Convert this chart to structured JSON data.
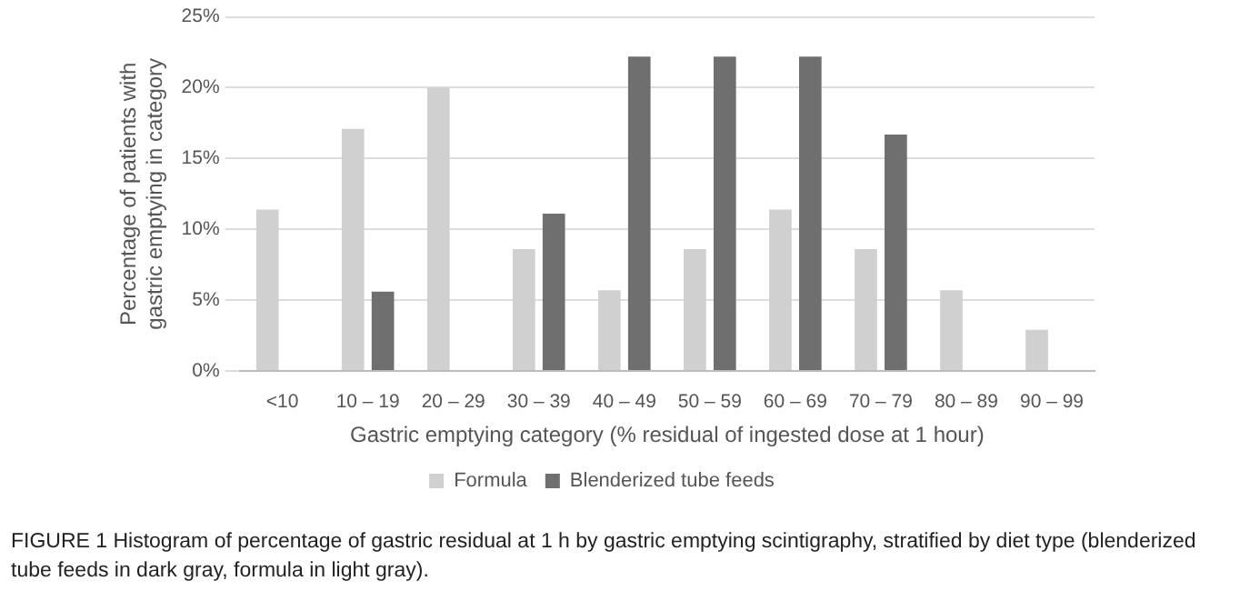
{
  "chart_data": {
    "type": "bar",
    "xlabel": "Gastric emptying category (% residual of ingested dose at 1 hour)",
    "ylabel": "Percentage of patients with gastric emptying in category",
    "categories": [
      "<10",
      "10 – 19",
      "20 – 29",
      "30 – 39",
      "40 – 49",
      "50 – 59",
      "60 – 69",
      "70 – 79",
      "80 – 89",
      "90 – 99"
    ],
    "series": [
      {
        "name": "Formula",
        "color": "#d0d0d0",
        "values": [
          11.4,
          17.1,
          20,
          8.6,
          5.7,
          8.6,
          11.4,
          8.6,
          5.7,
          2.9
        ]
      },
      {
        "name": "Blenderized tube feeds",
        "color": "#6f6f6f",
        "values": [
          null,
          5.6,
          null,
          11.1,
          22.2,
          22.2,
          22.2,
          16.7,
          null,
          null
        ]
      }
    ],
    "ylim": [
      0,
      25
    ],
    "yticks": [
      {
        "value": 0,
        "label": "0%"
      },
      {
        "value": 5,
        "label": "5%"
      },
      {
        "value": 10,
        "label": "10%"
      },
      {
        "value": 15,
        "label": "15%"
      },
      {
        "value": 20,
        "label": "20%"
      },
      {
        "value": 25,
        "label": "25%"
      }
    ],
    "grid": "y",
    "legend": "bottom",
    "annotations": [
      "FIGURE 1 Histogram of percentage of gastric residual at 1 h by gastric emptying scintigraphy, stratified by diet type (blenderized tube feeds in dark gray, formula in light gray)."
    ]
  }
}
